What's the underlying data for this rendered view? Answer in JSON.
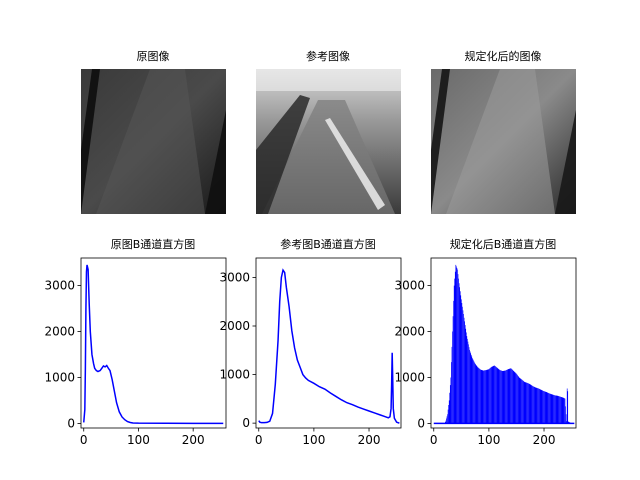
{
  "figure": {
    "images": [
      {
        "title": "原图像",
        "style": "dark"
      },
      {
        "title": "参考图像",
        "style": "bright"
      },
      {
        "title": "规定化后的图像",
        "style": "mid"
      }
    ]
  },
  "chart_data": [
    {
      "type": "line",
      "title": "原图B通道直方图",
      "xlabel": "",
      "ylabel": "",
      "xlim": [
        -5,
        260
      ],
      "ylim": [
        -100,
        3600
      ],
      "xticks": [
        0,
        100,
        200
      ],
      "yticks": [
        0,
        1000,
        2000,
        3000
      ],
      "color": "#0000ff",
      "points": [
        [
          0,
          20
        ],
        [
          2,
          300
        ],
        [
          3,
          1200
        ],
        [
          4,
          2500
        ],
        [
          5,
          3300
        ],
        [
          6,
          3450
        ],
        [
          8,
          3350
        ],
        [
          10,
          2600
        ],
        [
          12,
          2000
        ],
        [
          15,
          1500
        ],
        [
          18,
          1300
        ],
        [
          20,
          1200
        ],
        [
          23,
          1150
        ],
        [
          26,
          1130
        ],
        [
          30,
          1150
        ],
        [
          33,
          1200
        ],
        [
          36,
          1250
        ],
        [
          39,
          1230
        ],
        [
          42,
          1260
        ],
        [
          45,
          1200
        ],
        [
          48,
          1150
        ],
        [
          52,
          950
        ],
        [
          56,
          700
        ],
        [
          60,
          450
        ],
        [
          65,
          250
        ],
        [
          70,
          140
        ],
        [
          75,
          80
        ],
        [
          80,
          40
        ],
        [
          85,
          20
        ],
        [
          90,
          10
        ],
        [
          100,
          5
        ],
        [
          150,
          2
        ],
        [
          200,
          1
        ],
        [
          255,
          0
        ]
      ]
    },
    {
      "type": "line",
      "title": "参考图B通道直方图",
      "xlabel": "",
      "ylabel": "",
      "xlim": [
        -5,
        258
      ],
      "ylim": [
        -100,
        3400
      ],
      "xticks": [
        0,
        100,
        200
      ],
      "yticks": [
        0,
        1000,
        2000,
        3000
      ],
      "color": "#0000ff",
      "points": [
        [
          0,
          50
        ],
        [
          2,
          20
        ],
        [
          5,
          10
        ],
        [
          10,
          10
        ],
        [
          15,
          15
        ],
        [
          20,
          40
        ],
        [
          25,
          200
        ],
        [
          30,
          800
        ],
        [
          35,
          1700
        ],
        [
          38,
          2500
        ],
        [
          41,
          3000
        ],
        [
          44,
          3150
        ],
        [
          47,
          3100
        ],
        [
          50,
          2800
        ],
        [
          55,
          2400
        ],
        [
          60,
          1900
        ],
        [
          65,
          1550
        ],
        [
          70,
          1300
        ],
        [
          75,
          1150
        ],
        [
          80,
          1000
        ],
        [
          85,
          930
        ],
        [
          90,
          880
        ],
        [
          100,
          820
        ],
        [
          110,
          750
        ],
        [
          120,
          700
        ],
        [
          130,
          620
        ],
        [
          140,
          550
        ],
        [
          150,
          480
        ],
        [
          160,
          420
        ],
        [
          170,
          380
        ],
        [
          180,
          330
        ],
        [
          190,
          290
        ],
        [
          200,
          250
        ],
        [
          210,
          210
        ],
        [
          220,
          170
        ],
        [
          230,
          130
        ],
        [
          235,
          110
        ],
        [
          238,
          130
        ],
        [
          240,
          300
        ],
        [
          241,
          800
        ],
        [
          242,
          1450
        ],
        [
          243,
          900
        ],
        [
          244,
          300
        ],
        [
          246,
          100
        ],
        [
          250,
          20
        ],
        [
          255,
          0
        ]
      ]
    },
    {
      "type": "bar",
      "title": "规定化后B通道直方图",
      "xlabel": "",
      "ylabel": "",
      "xlim": [
        -5,
        258
      ],
      "ylim": [
        -100,
        3600
      ],
      "xticks": [
        0,
        100,
        200
      ],
      "yticks": [
        0,
        1000,
        2000,
        3000
      ],
      "color": "#0000ff",
      "profile": [
        [
          0,
          0
        ],
        [
          20,
          0
        ],
        [
          22,
          60
        ],
        [
          25,
          200
        ],
        [
          28,
          500
        ],
        [
          31,
          1000
        ],
        [
          34,
          2000
        ],
        [
          37,
          3000
        ],
        [
          40,
          3450
        ],
        [
          43,
          3350
        ],
        [
          46,
          3050
        ],
        [
          50,
          2700
        ],
        [
          55,
          2300
        ],
        [
          60,
          1900
        ],
        [
          65,
          1600
        ],
        [
          70,
          1420
        ],
        [
          75,
          1300
        ],
        [
          80,
          1220
        ],
        [
          85,
          1170
        ],
        [
          90,
          1150
        ],
        [
          95,
          1160
        ],
        [
          100,
          1180
        ],
        [
          105,
          1230
        ],
        [
          110,
          1260
        ],
        [
          115,
          1210
        ],
        [
          120,
          1160
        ],
        [
          125,
          1140
        ],
        [
          130,
          1150
        ],
        [
          135,
          1180
        ],
        [
          140,
          1200
        ],
        [
          145,
          1140
        ],
        [
          150,
          1080
        ],
        [
          155,
          1000
        ],
        [
          160,
          950
        ],
        [
          165,
          900
        ],
        [
          170,
          880
        ],
        [
          175,
          850
        ],
        [
          180,
          810
        ],
        [
          185,
          780
        ],
        [
          190,
          760
        ],
        [
          195,
          730
        ],
        [
          200,
          700
        ],
        [
          205,
          680
        ],
        [
          210,
          650
        ],
        [
          215,
          630
        ],
        [
          220,
          610
        ],
        [
          225,
          600
        ],
        [
          230,
          580
        ],
        [
          235,
          560
        ],
        [
          238,
          540
        ],
        [
          240,
          200
        ],
        [
          241,
          50
        ],
        [
          242,
          760
        ],
        [
          243,
          700
        ],
        [
          244,
          40
        ],
        [
          250,
          0
        ],
        [
          255,
          0
        ]
      ]
    }
  ]
}
